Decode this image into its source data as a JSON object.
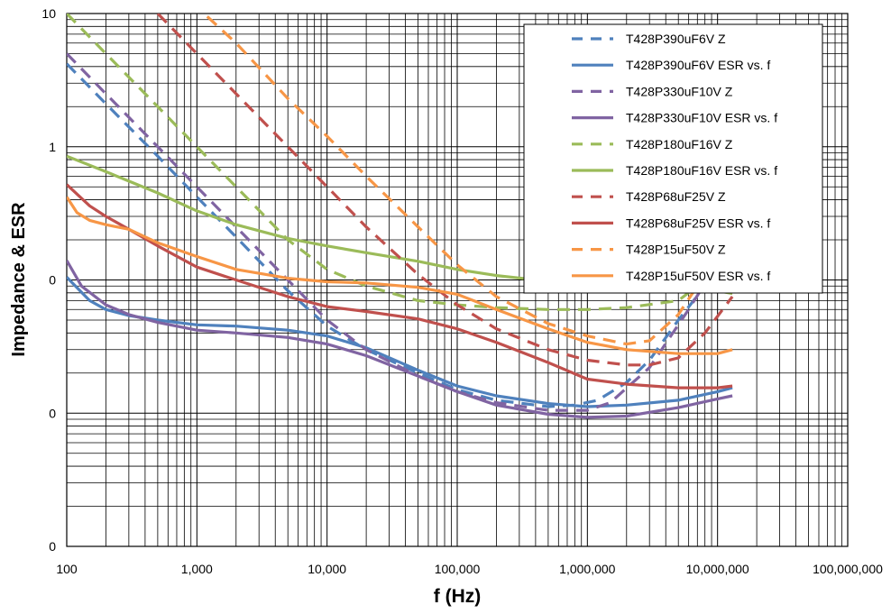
{
  "chart_data": {
    "type": "line",
    "title": "",
    "xlabel": "f (Hz)",
    "ylabel": "Impedance & ESR",
    "x_scale": "log",
    "y_scale": "log",
    "xlim": [
      100,
      100000000
    ],
    "ylim": [
      0.001,
      10
    ],
    "x_ticks": [
      {
        "value": 100,
        "label": "100"
      },
      {
        "value": 1000,
        "label": "1,000"
      },
      {
        "value": 10000,
        "label": "10,000"
      },
      {
        "value": 100000,
        "label": "100,000"
      },
      {
        "value": 1000000,
        "label": "1,000,000"
      },
      {
        "value": 10000000,
        "label": "10,000,000"
      },
      {
        "value": 100000000,
        "label": "100,000,000"
      }
    ],
    "y_ticks": [
      {
        "value": 0.001,
        "label": "0"
      },
      {
        "value": 0.01,
        "label": "0"
      },
      {
        "value": 0.1,
        "label": "0"
      },
      {
        "value": 1,
        "label": "1"
      },
      {
        "value": 10,
        "label": "10"
      }
    ],
    "grid": true,
    "legend_position": "top-right",
    "series": [
      {
        "name": "T428P390uF6V Z",
        "color": "#4f81bd",
        "dash": true,
        "x": [
          100,
          200,
          500,
          1000,
          2000,
          5000,
          10000,
          20000,
          50000,
          100000,
          200000,
          500000,
          800000,
          1200000,
          2000000,
          3000000,
          5000000,
          8000000,
          13000000
        ],
        "y": [
          4.2,
          2.1,
          0.85,
          0.42,
          0.21,
          0.083,
          0.045,
          0.03,
          0.02,
          0.015,
          0.0125,
          0.0112,
          0.0115,
          0.0125,
          0.017,
          0.025,
          0.05,
          0.09,
          0.2
        ]
      },
      {
        "name": "T428P390uF6V ESR vs. f",
        "color": "#4f81bd",
        "dash": false,
        "x": [
          100,
          150,
          200,
          300,
          500,
          1000,
          2000,
          5000,
          10000,
          20000,
          50000,
          100000,
          200000,
          500000,
          1000000,
          2000000,
          5000000,
          10000000,
          13000000
        ],
        "y": [
          0.105,
          0.07,
          0.06,
          0.054,
          0.05,
          0.046,
          0.045,
          0.042,
          0.038,
          0.031,
          0.021,
          0.016,
          0.0135,
          0.0118,
          0.0112,
          0.0115,
          0.0125,
          0.0145,
          0.0155
        ]
      },
      {
        "name": "T428P330uF10V Z",
        "color": "#8064a2",
        "dash": true,
        "x": [
          100,
          200,
          500,
          1000,
          2000,
          5000,
          10000,
          20000,
          50000,
          100000,
          200000,
          500000,
          1000000,
          1500000,
          3000000,
          6000000,
          13000000
        ],
        "y": [
          5.0,
          2.5,
          1.0,
          0.5,
          0.25,
          0.1,
          0.05,
          0.03,
          0.019,
          0.0145,
          0.012,
          0.0105,
          0.0105,
          0.012,
          0.022,
          0.06,
          0.2
        ]
      },
      {
        "name": "T428P330uF10V ESR vs. f",
        "color": "#8064a2",
        "dash": false,
        "x": [
          100,
          130,
          200,
          300,
          500,
          1000,
          2000,
          5000,
          10000,
          20000,
          50000,
          100000,
          200000,
          500000,
          1000000,
          2000000,
          5000000,
          10000000,
          13000000
        ],
        "y": [
          0.14,
          0.09,
          0.065,
          0.055,
          0.048,
          0.042,
          0.04,
          0.037,
          0.033,
          0.027,
          0.019,
          0.0145,
          0.0115,
          0.0098,
          0.0093,
          0.0095,
          0.011,
          0.0128,
          0.0135
        ]
      },
      {
        "name": "T428P180uF16V Z",
        "color": "#9bbb59",
        "dash": true,
        "x": [
          100,
          200,
          500,
          1000,
          2000,
          5000,
          10000,
          20000,
          50000,
          100000,
          200000,
          500000,
          1000000,
          2000000,
          5000000,
          8000000,
          13000000
        ],
        "y": [
          10.0,
          5.0,
          2.0,
          1.0,
          0.5,
          0.2,
          0.12,
          0.09,
          0.07,
          0.065,
          0.062,
          0.06,
          0.06,
          0.062,
          0.07,
          0.1,
          0.25
        ]
      },
      {
        "name": "T428P180uF16V ESR vs. f",
        "color": "#9bbb59",
        "dash": false,
        "x": [
          100,
          200,
          500,
          1000,
          2000,
          5000,
          10000,
          20000,
          50000,
          100000,
          200000,
          500000,
          1000000,
          2000000,
          5000000,
          10000000,
          13000000
        ],
        "y": [
          0.85,
          0.65,
          0.45,
          0.33,
          0.26,
          0.205,
          0.18,
          0.16,
          0.138,
          0.12,
          0.108,
          0.098,
          0.094,
          0.091,
          0.088,
          0.083,
          0.079
        ]
      },
      {
        "name": "T428P68uF25V Z",
        "color": "#c0504d",
        "dash": true,
        "x": [
          500,
          1000,
          2000,
          5000,
          10000,
          20000,
          50000,
          100000,
          200000,
          500000,
          1000000,
          2000000,
          3000000,
          5000000,
          8000000,
          13000000
        ],
        "y": [
          10.0,
          5.0,
          2.5,
          1.0,
          0.5,
          0.25,
          0.11,
          0.065,
          0.043,
          0.03,
          0.025,
          0.023,
          0.023,
          0.026,
          0.04,
          0.075
        ]
      },
      {
        "name": "T428P68uF25V ESR vs. f",
        "color": "#c0504d",
        "dash": false,
        "x": [
          100,
          150,
          200,
          300,
          500,
          1000,
          2000,
          5000,
          10000,
          20000,
          50000,
          100000,
          200000,
          500000,
          1000000,
          2000000,
          5000000,
          10000000,
          13000000
        ],
        "y": [
          0.52,
          0.36,
          0.3,
          0.24,
          0.18,
          0.125,
          0.1,
          0.075,
          0.063,
          0.058,
          0.051,
          0.043,
          0.034,
          0.024,
          0.018,
          0.0165,
          0.0155,
          0.0155,
          0.016
        ]
      },
      {
        "name": "T428P15uF50V Z",
        "color": "#f79646",
        "dash": true,
        "x": [
          1200,
          2000,
          5000,
          10000,
          20000,
          50000,
          100000,
          200000,
          500000,
          1000000,
          2000000,
          3000000,
          5000000,
          8000000,
          13000000
        ],
        "y": [
          9.5,
          6.0,
          2.3,
          1.2,
          0.6,
          0.25,
          0.13,
          0.075,
          0.047,
          0.038,
          0.033,
          0.035,
          0.055,
          0.11,
          0.25
        ]
      },
      {
        "name": "T428P15uF50V ESR vs. f",
        "color": "#f79646",
        "dash": false,
        "x": [
          100,
          120,
          150,
          200,
          300,
          500,
          1000,
          2000,
          5000,
          10000,
          20000,
          50000,
          100000,
          200000,
          500000,
          1000000,
          2000000,
          5000000,
          10000000,
          13000000
        ],
        "y": [
          0.42,
          0.32,
          0.28,
          0.26,
          0.24,
          0.19,
          0.15,
          0.12,
          0.103,
          0.097,
          0.095,
          0.088,
          0.078,
          0.06,
          0.043,
          0.034,
          0.03,
          0.028,
          0.028,
          0.03
        ]
      }
    ]
  }
}
